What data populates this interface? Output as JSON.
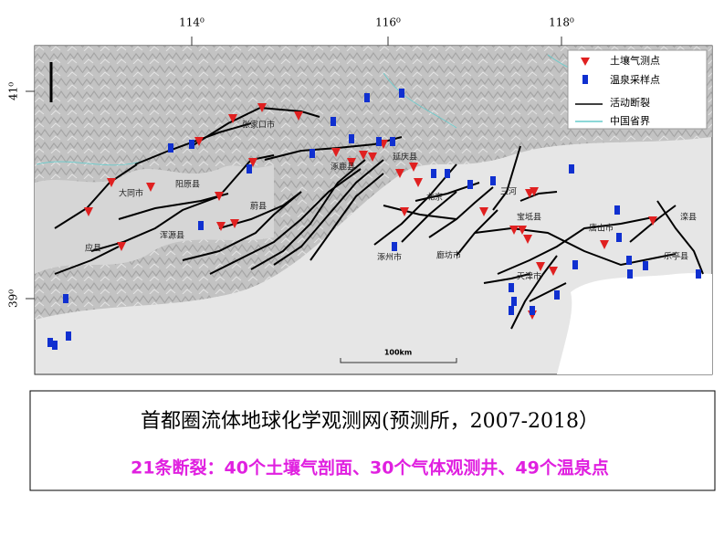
{
  "map": {
    "axis_labels": {
      "lon": [
        "114⁰",
        "116⁰",
        "118⁰"
      ],
      "lat": [
        "41⁰",
        "39⁰"
      ]
    },
    "legend": [
      "土壤气测点",
      "温泉采样点",
      "活动断裂",
      "中国省界"
    ],
    "places": [
      "张家口市",
      "延庆县",
      "大同市",
      "阳原县",
      "蔚县",
      "涿鹿县",
      "北京",
      "三河",
      "宝坻县",
      "唐山市",
      "滦县",
      "乐亭县",
      "天津市",
      "廊坊市",
      "涿州市",
      "应县",
      "浑源县"
    ],
    "scale": "100km"
  },
  "caption": {
    "title": "首都圈流体地球化学观测网(预测所，2007-2018）",
    "subtitle": "21条断裂：40个土壤气剖面、30个气体观测井、49个温泉点"
  }
}
